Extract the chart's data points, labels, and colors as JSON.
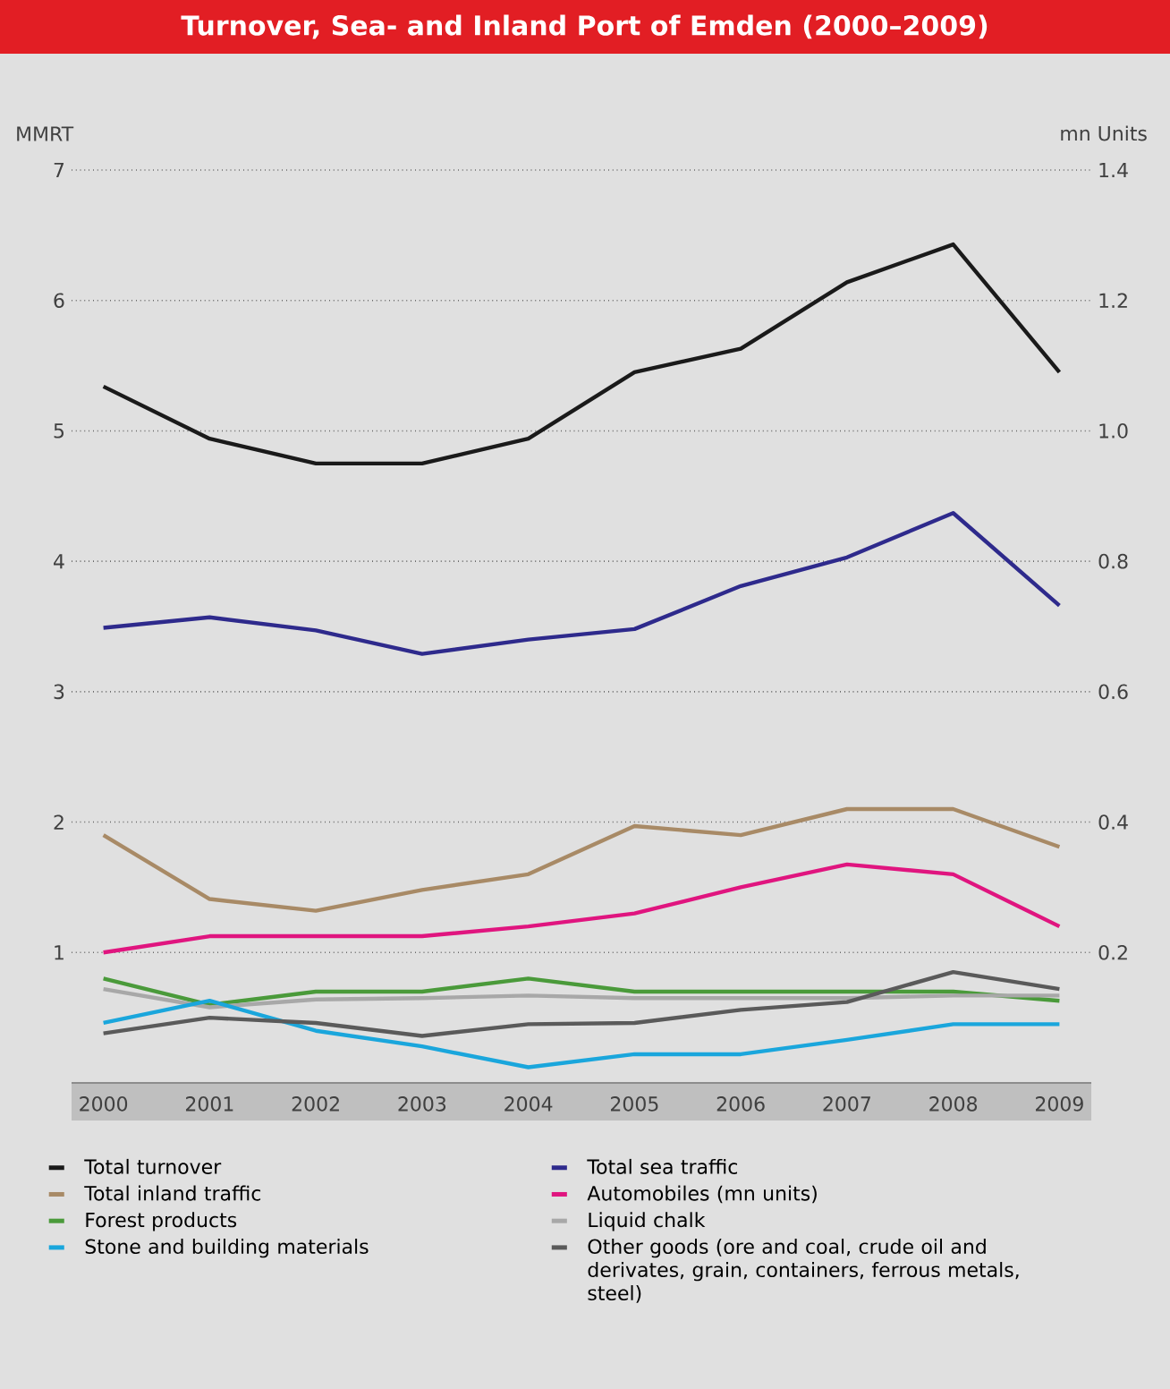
{
  "chart_data": {
    "type": "line",
    "title": "Turnover, Sea- and Inland Port of Emden (2000–2009)",
    "ylabel": "MMRT",
    "y2label": "mn Units",
    "categories": [
      "2000",
      "2001",
      "2002",
      "2003",
      "2004",
      "2005",
      "2006",
      "2007",
      "2008",
      "2009"
    ],
    "ylim": [
      0,
      7
    ],
    "yticks": [
      1,
      2,
      3,
      4,
      5,
      6,
      7
    ],
    "y2lim": [
      0,
      1.4
    ],
    "y2ticks": [
      0.2,
      0.4,
      0.6,
      0.8,
      {
        "value": 1,
        "label": "1.0"
      },
      1.2,
      1.4
    ],
    "grid": "y",
    "legend": "bottom",
    "marker": "none",
    "line_style": "solid",
    "series": [
      {
        "name": "Total turnover",
        "color": "#1a1a1a",
        "values": [
          5.34,
          4.94,
          4.75,
          4.75,
          4.94,
          5.45,
          5.63,
          6.14,
          6.43,
          5.45
        ]
      },
      {
        "name": "Total sea traffic",
        "color": "#2e2a8c",
        "values": [
          3.49,
          3.57,
          3.47,
          3.29,
          3.4,
          3.48,
          3.81,
          4.03,
          4.37,
          3.66
        ]
      },
      {
        "name": "Total inland traffic",
        "color": "#a88a66",
        "values": [
          1.9,
          1.41,
          1.32,
          1.48,
          1.6,
          1.97,
          1.9,
          2.1,
          2.1,
          1.81
        ]
      },
      {
        "name": "Automobiles (mn units)",
        "color": "#e0157f",
        "axis": "y2",
        "values": [
          0.2,
          0.225,
          0.225,
          0.225,
          0.24,
          0.26,
          0.3,
          0.335,
          0.32,
          0.24
        ]
      },
      {
        "name": "Forest products",
        "color": "#4a9a3a",
        "values": [
          0.8,
          0.6,
          0.7,
          0.7,
          0.8,
          0.7,
          0.7,
          0.7,
          0.7,
          0.63
        ]
      },
      {
        "name": "Liquid chalk",
        "color": "#a8a8a8",
        "values": [
          0.72,
          0.58,
          0.64,
          0.65,
          0.67,
          0.65,
          0.65,
          0.65,
          0.67,
          0.67
        ]
      },
      {
        "name": "Stone and building materials",
        "color": "#1aa6dc",
        "values": [
          0.46,
          0.63,
          0.4,
          0.28,
          0.12,
          0.22,
          0.22,
          0.33,
          0.45,
          0.45
        ]
      },
      {
        "name": "Other goods (ore and coal,  crude oil and derivates, grain, containers, ferrous metals, steel)",
        "color": "#5a5a5a",
        "values": [
          0.38,
          0.5,
          0.46,
          0.36,
          0.45,
          0.46,
          0.56,
          0.62,
          0.85,
          0.72
        ]
      }
    ]
  }
}
